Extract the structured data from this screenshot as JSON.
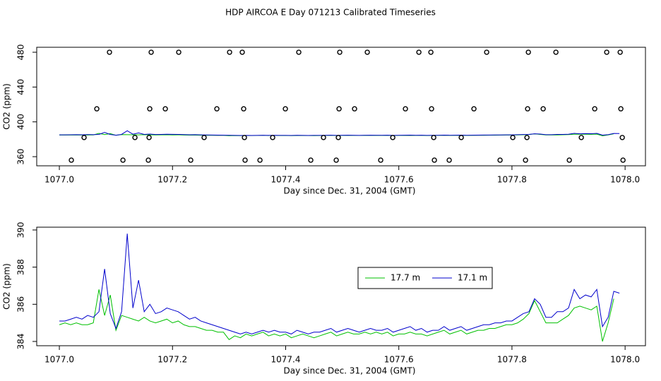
{
  "chart_data": [
    {
      "type": "scatter",
      "title": "HDP AIRCOA E  Day 071213  Calibrated Timeseries",
      "xlabel": "Day since Dec. 31, 2004 (GMT)",
      "ylabel": "CO2 (ppm)",
      "color": "#000000",
      "x": [
        1077.0886,
        1077.1623,
        1077.211,
        1077.3009,
        1077.3233,
        1077.4232,
        1077.4956,
        1077.5443,
        1077.6355,
        1077.6567,
        1077.7553,
        1077.829,
        1077.8777,
        1077.9675,
        1077.9913,
        1077.0662,
        1077.1598,
        1077.1873,
        1077.2784,
        1077.3258,
        1077.3995,
        1077.4944,
        1077.5218,
        1077.6117,
        1077.6579,
        1077.7328,
        1077.8277,
        1077.8552,
        1077.9463,
        1077.9925,
        1077.0437,
        1077.1336,
        1077.1586,
        1077.2559,
        1077.3271,
        1077.377,
        1077.4669,
        1077.4931,
        1077.5893,
        1077.6617,
        1077.7104,
        1077.8015,
        1077.8265,
        1077.9226,
        1077.995,
        1077.0212,
        1077.1124,
        1077.1573,
        1077.2322,
        1077.3283,
        1077.3546,
        1077.4444,
        1077.4894,
        1077.568,
        1077.6629,
        1077.6891,
        1077.779,
        1077.824,
        1077.9014,
        1077.9963
      ],
      "values": [
        480,
        480,
        480,
        480,
        480,
        480,
        480,
        480,
        480,
        480,
        480,
        480,
        480,
        480,
        480,
        415,
        415,
        415,
        415,
        415,
        415,
        415,
        415,
        415,
        415,
        415,
        415,
        415,
        415,
        415,
        382,
        382,
        382,
        382,
        382,
        382,
        382,
        382,
        382,
        382,
        382,
        382,
        382,
        382,
        382,
        356,
        356,
        356,
        356,
        356,
        356,
        356,
        356,
        356,
        356,
        356,
        356,
        356,
        356,
        356
      ],
      "xlim": [
        1076.96,
        1078.036
      ],
      "ylim": [
        349.5,
        485.7
      ],
      "xticks": [
        {
          "value": 1077,
          "label": "1077.0"
        },
        1077.2,
        1077.4,
        1077.6,
        1077.8,
        {
          "value": 1078,
          "label": "1078.0"
        }
      ],
      "yticks": [
        360,
        400,
        440,
        480
      ]
    },
    {
      "type": "line",
      "xlabel": "Day since Dec. 31, 2004 (GMT)",
      "ylabel": "CO2 (ppm)",
      "x": [
        1077.0,
        1077.01,
        1077.02,
        1077.03,
        1077.04,
        1077.05,
        1077.06,
        1077.07,
        1077.08,
        1077.09,
        1077.1,
        1077.11,
        1077.12,
        1077.13,
        1077.14,
        1077.15,
        1077.16,
        1077.17,
        1077.18,
        1077.19,
        1077.2,
        1077.21,
        1077.22,
        1077.23,
        1077.24,
        1077.25,
        1077.26,
        1077.27,
        1077.28,
        1077.29,
        1077.3,
        1077.31,
        1077.32,
        1077.33,
        1077.34,
        1077.35,
        1077.36,
        1077.37,
        1077.38,
        1077.39,
        1077.4,
        1077.41,
        1077.42,
        1077.43,
        1077.44,
        1077.45,
        1077.46,
        1077.47,
        1077.48,
        1077.49,
        1077.5,
        1077.51,
        1077.52,
        1077.53,
        1077.54,
        1077.55,
        1077.56,
        1077.57,
        1077.58,
        1077.59,
        1077.6,
        1077.61,
        1077.62,
        1077.63,
        1077.64,
        1077.65,
        1077.66,
        1077.67,
        1077.68,
        1077.69,
        1077.7,
        1077.71,
        1077.72,
        1077.73,
        1077.74,
        1077.75,
        1077.76,
        1077.77,
        1077.78,
        1077.79,
        1077.8,
        1077.81,
        1077.82,
        1077.83,
        1077.84,
        1077.85,
        1077.86,
        1077.87,
        1077.88,
        1077.89,
        1077.9,
        1077.91,
        1077.92,
        1077.93,
        1077.94,
        1077.95,
        1077.96,
        1077.97,
        1077.98,
        1077.99
      ],
      "series": [
        {
          "name": "17.7 m",
          "color": "#00c000",
          "values": [
            384.9,
            385.0,
            384.9,
            385.0,
            384.9,
            384.9,
            385.0,
            386.8,
            385.4,
            386.5,
            384.6,
            385.4,
            385.3,
            385.2,
            385.1,
            385.3,
            385.1,
            385.0,
            385.1,
            385.2,
            385.0,
            385.1,
            384.9,
            384.8,
            384.8,
            384.7,
            384.6,
            384.6,
            384.5,
            384.5,
            384.1,
            384.3,
            384.2,
            384.4,
            384.3,
            384.4,
            384.5,
            384.3,
            384.4,
            384.3,
            384.4,
            384.2,
            384.3,
            384.4,
            384.3,
            384.2,
            384.3,
            384.4,
            384.5,
            384.3,
            384.4,
            384.5,
            384.4,
            384.4,
            384.5,
            384.4,
            384.5,
            384.4,
            384.5,
            384.3,
            384.4,
            384.4,
            384.5,
            384.4,
            384.4,
            384.3,
            384.4,
            384.5,
            384.6,
            384.4,
            384.5,
            384.6,
            384.4,
            384.5,
            384.6,
            384.6,
            384.7,
            384.7,
            384.8,
            384.9,
            384.9,
            385.0,
            385.2,
            385.5,
            386.2,
            385.6,
            385.0,
            385.0,
            385.0,
            385.2,
            385.4,
            385.8,
            385.9,
            385.8,
            385.7,
            385.9,
            384.0,
            385.0,
            386.3,
            null
          ]
        },
        {
          "name": "17.1 m",
          "color": "#0000cc",
          "values": [
            385.1,
            385.1,
            385.2,
            385.3,
            385.2,
            385.4,
            385.3,
            385.6,
            387.9,
            385.5,
            384.7,
            385.6,
            389.8,
            385.8,
            387.3,
            385.6,
            386.0,
            385.5,
            385.6,
            385.8,
            385.7,
            385.6,
            385.4,
            385.2,
            385.3,
            385.1,
            385.0,
            384.9,
            384.8,
            384.7,
            384.6,
            384.5,
            384.4,
            384.5,
            384.4,
            384.5,
            384.6,
            384.5,
            384.6,
            384.5,
            384.5,
            384.4,
            384.6,
            384.5,
            384.4,
            384.5,
            384.5,
            384.6,
            384.7,
            384.5,
            384.6,
            384.7,
            384.6,
            384.5,
            384.6,
            384.7,
            384.6,
            384.6,
            384.7,
            384.5,
            384.6,
            384.7,
            384.8,
            384.6,
            384.7,
            384.5,
            384.6,
            384.6,
            384.8,
            384.6,
            384.7,
            384.8,
            384.6,
            384.7,
            384.8,
            384.9,
            384.9,
            385.0,
            385.0,
            385.1,
            385.1,
            385.3,
            385.5,
            385.6,
            386.3,
            386.0,
            385.3,
            385.3,
            385.6,
            385.6,
            385.8,
            386.8,
            386.3,
            386.5,
            386.4,
            386.8,
            384.8,
            385.3,
            386.7,
            386.6
          ]
        }
      ],
      "xlim": [
        1076.96,
        1078.036
      ],
      "ylim": [
        383.77,
        390.15
      ],
      "xticks": [
        {
          "value": 1077,
          "label": "1077.0"
        },
        1077.2,
        1077.4,
        1077.6,
        1077.8,
        {
          "value": 1078,
          "label": "1078.0"
        }
      ],
      "yticks": [
        384,
        386,
        388,
        390
      ]
    }
  ]
}
